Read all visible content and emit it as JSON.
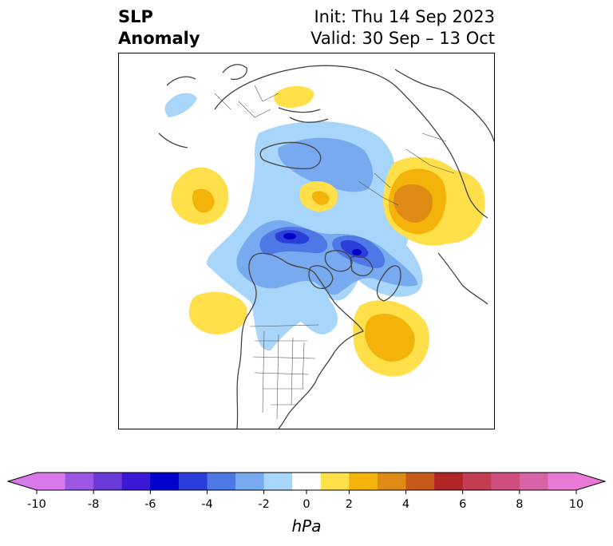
{
  "title": {
    "left_line1": "SLP",
    "left_line2": "Anomaly",
    "right_line1": "Init: Thu 14 Sep 2023",
    "right_line2": "Valid: 30 Sep – 13 Oct"
  },
  "colorbar": {
    "units": "hPa",
    "bounds": [
      -10,
      -9,
      -8,
      -7,
      -6,
      -5,
      -4,
      -3,
      -2,
      -1,
      1,
      2,
      3,
      4,
      5,
      6,
      7,
      8,
      9,
      10
    ],
    "colors": [
      "#d779e8",
      "#9b57e3",
      "#6a3ad9",
      "#3a18d4",
      "#0000cc",
      "#2a3fd9",
      "#4d78e6",
      "#78aaf0",
      "#a8d6fa",
      "#ffffff",
      "#ffdf4a",
      "#f3b30a",
      "#df8a14",
      "#c85a19",
      "#b02626",
      "#c23d52",
      "#cf4e7d",
      "#d864a8",
      "#e87ad6"
    ],
    "under_color": "#d779e8",
    "over_color": "#e87ad6",
    "tick_values": [
      -10,
      -8,
      -6,
      -4,
      -2,
      0,
      2,
      4,
      6,
      8,
      10
    ],
    "tick_labels": [
      "-10",
      "-8",
      "-6",
      "-4",
      "-2",
      "0",
      "2",
      "4",
      "6",
      "8",
      "10"
    ]
  },
  "map": {
    "projection": "north-polar-stereographic",
    "coastline_color": "#444444",
    "border_color": "#444444"
  }
}
